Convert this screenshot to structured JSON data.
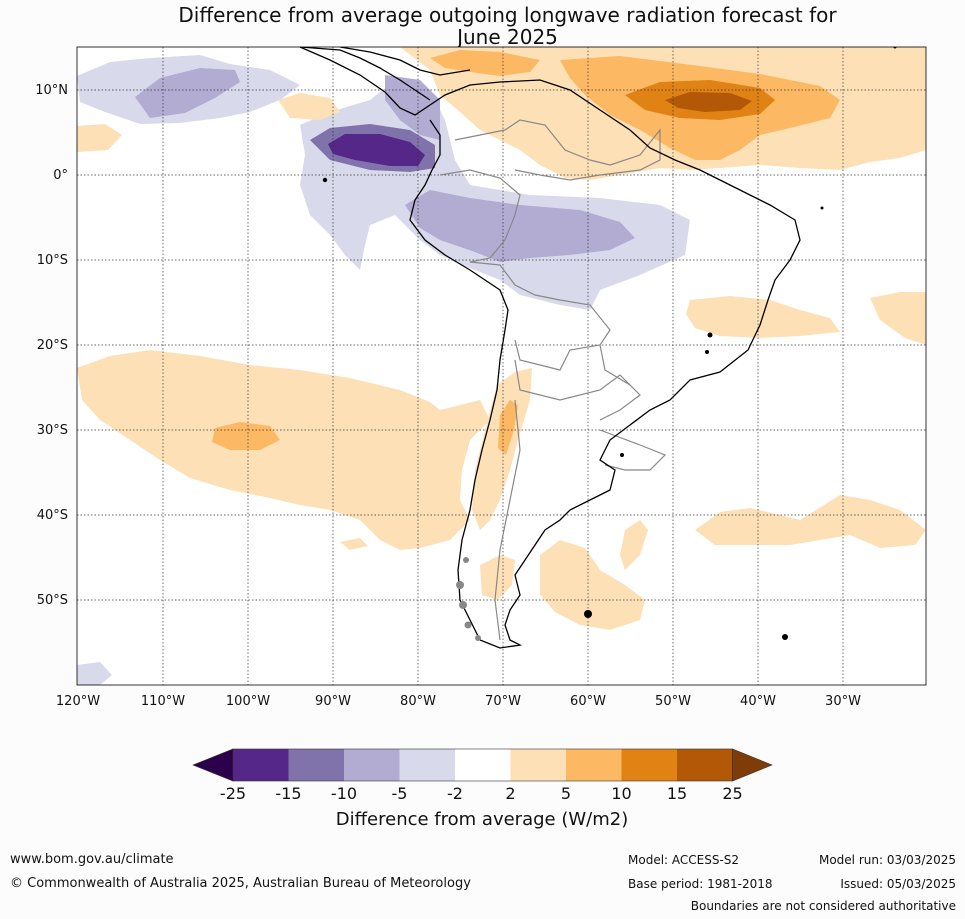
{
  "title_line1": "Difference from average outgoing longwave radiation forecast for",
  "title_line2": "June 2025",
  "map": {
    "lon_range": [
      -120,
      -20
    ],
    "lat_range": [
      -60,
      15
    ],
    "lon_ticks": [
      "120°W",
      "110°W",
      "100°W",
      "90°W",
      "80°W",
      "70°W",
      "60°W",
      "50°W",
      "40°W",
      "30°W"
    ],
    "lat_ticks": [
      "10°N",
      "0°",
      "10°S",
      "20°S",
      "30°S",
      "40°S",
      "50°S"
    ],
    "grid": "dotted",
    "colors": {
      "neg25": "#2d004b",
      "neg15_25": "#542788",
      "neg10_15": "#8073ac",
      "neg5_10": "#b2abd2",
      "neg2_5": "#d8daeb",
      "neutral": "#ffffff",
      "pos2_5": "#fee0b6",
      "pos5_10": "#fdb863",
      "pos10_15": "#e08214",
      "pos15_25": "#b35806",
      "pos25": "#7f3b08"
    }
  },
  "colorbar": {
    "tick_labels": [
      "-25",
      "-15",
      "-10",
      "-5",
      "-2",
      "2",
      "5",
      "10",
      "15",
      "25"
    ],
    "colors": [
      "#542788",
      "#8073ac",
      "#b2abd2",
      "#d8daeb",
      "#ffffff",
      "#fee0b6",
      "#fdb863",
      "#e08214",
      "#b35806"
    ],
    "under_color": "#2d004b",
    "over_color": "#7f3b08",
    "title": "Difference from average (W/m2)"
  },
  "footer": {
    "website": "www.bom.gov.au/climate",
    "copyright": "© Commonwealth of Australia 2025, Australian Bureau of Meteorology",
    "model": "Model: ACCESS-S2",
    "base_period": "Base period: 1981-2018",
    "model_run": "Model run: 03/03/2025",
    "issued": "Issued: 05/03/2025",
    "disclaimer": "Boundaries are not considered authoritative"
  }
}
